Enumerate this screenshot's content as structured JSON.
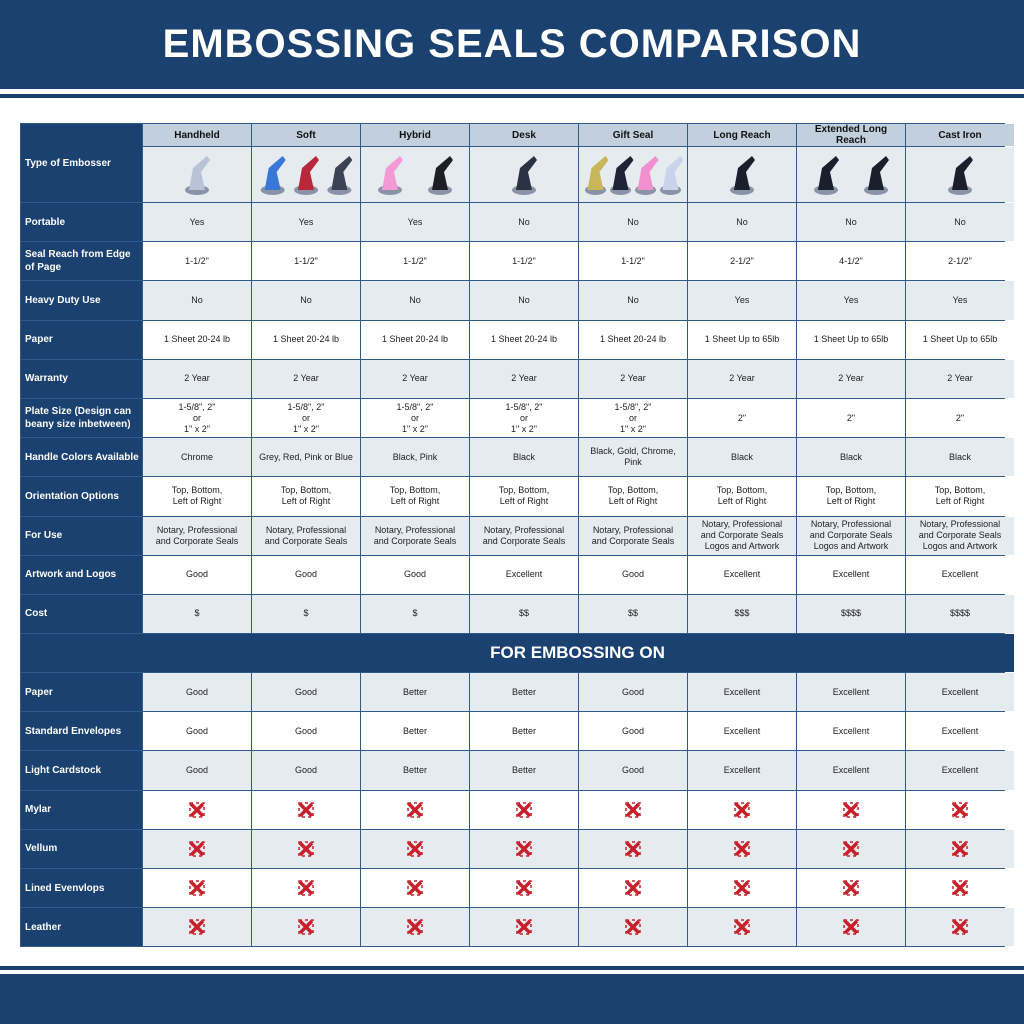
{
  "title": "EMBOSSING SEALS COMPARISON",
  "colors": {
    "brand_blue": "#1a4170",
    "header_grey": "#c2cfdc",
    "row_alt": "#e6ebf0",
    "x_mark": "#c8202a"
  },
  "type_label": "Type of Embosser",
  "columns": [
    {
      "name": "Handheld",
      "image_colors": [
        "#b9c3d8"
      ]
    },
    {
      "name": "Soft",
      "image_colors": [
        "#3a78d8",
        "#b8283a",
        "#3b4256"
      ]
    },
    {
      "name": "Hybrid",
      "image_colors": [
        "#f39ad4",
        "#1e1f26"
      ]
    },
    {
      "name": "Desk",
      "image_colors": [
        "#2b3242"
      ]
    },
    {
      "name": "Gift Seal",
      "image_colors": [
        "#c9b65a",
        "#1e2336",
        "#f28fcf",
        "#c9d4ea"
      ]
    },
    {
      "name": "Long Reach",
      "image_colors": [
        "#1b1f2c"
      ]
    },
    {
      "name": "Extended Long Reach",
      "image_colors": [
        "#1b1f2c",
        "#1b1f2c"
      ]
    },
    {
      "name": "Cast Iron",
      "image_colors": [
        "#1b1f2c"
      ]
    }
  ],
  "rows": [
    {
      "label": "Portable",
      "values": [
        "Yes",
        "Yes",
        "Yes",
        "No",
        "No",
        "No",
        "No",
        "No"
      ]
    },
    {
      "label": "Seal Reach from Edge of Page",
      "values": [
        "1-1/2\"",
        "1-1/2\"",
        "1-1/2\"",
        "1-1/2\"",
        "1-1/2\"",
        "2-1/2\"",
        "4-1/2\"",
        "2-1/2\""
      ]
    },
    {
      "label": "Heavy Duty Use",
      "values": [
        "No",
        "No",
        "No",
        "No",
        "No",
        "Yes",
        "Yes",
        "Yes"
      ]
    },
    {
      "label": "Paper",
      "values": [
        "1 Sheet 20-24 lb",
        "1 Sheet 20-24 lb",
        "1 Sheet 20-24 lb",
        "1 Sheet 20-24 lb",
        "1 Sheet 20-24 lb",
        "1 Sheet Up to 65lb",
        "1 Sheet Up to 65lb",
        "1 Sheet Up to 65lb"
      ]
    },
    {
      "label": "Warranty",
      "values": [
        "2 Year",
        "2 Year",
        "2 Year",
        "2 Year",
        "2 Year",
        "2 Year",
        "2 Year",
        "2 Year"
      ]
    },
    {
      "label": "Plate Size (Design can beany size inbetween)",
      "values": [
        "1-5/8\", 2\"\nor\n1\" x 2\"",
        "1-5/8\", 2\"\nor\n1\" x 2\"",
        "1-5/8\", 2\"\nor\n1\" x 2\"",
        "1-5/8\", 2\"\nor\n1\" x 2\"",
        "1-5/8\", 2\"\nor\n1\" x 2\"",
        "2\"",
        "2\"",
        "2\""
      ]
    },
    {
      "label": "Handle Colors Available",
      "values": [
        "Chrome",
        "Grey, Red, Pink or Blue",
        "Black, Pink",
        "Black",
        "Black, Gold, Chrome, Pink",
        "Black",
        "Black",
        "Black"
      ]
    },
    {
      "label": "Orientation Options",
      "values": [
        "Top, Bottom,\nLeft of Right",
        "Top, Bottom,\nLeft of Right",
        "Top, Bottom,\nLeft of Right",
        "Top, Bottom,\nLeft of Right",
        "Top, Bottom,\nLeft of Right",
        "Top, Bottom,\nLeft of Right",
        "Top, Bottom,\nLeft of Right",
        "Top, Bottom,\nLeft of Right"
      ]
    },
    {
      "label": "For Use",
      "values": [
        "Notary, Professional\nand Corporate Seals",
        "Notary, Professional\nand Corporate Seals",
        "Notary, Professional\nand Corporate Seals",
        "Notary, Professional\nand Corporate Seals",
        "Notary, Professional\nand Corporate Seals",
        "Notary, Professional\nand Corporate Seals\nLogos and Artwork",
        "Notary, Professional\nand Corporate Seals\nLogos and Artwork",
        "Notary, Professional\nand Corporate Seals\nLogos and Artwork"
      ]
    },
    {
      "label": "Artwork and Logos",
      "values": [
        "Good",
        "Good",
        "Good",
        "Excellent",
        "Good",
        "Excellent",
        "Excellent",
        "Excellent"
      ]
    },
    {
      "label": "Cost",
      "values": [
        "$",
        "$",
        "$",
        "$$",
        "$$",
        "$$$",
        "$$$$",
        "$$$$"
      ]
    }
  ],
  "section_title": "FOR EMBOSSING ON",
  "embossing_rows": [
    {
      "label": "Paper",
      "values": [
        "Good",
        "Good",
        "Better",
        "Better",
        "Good",
        "Excellent",
        "Excellent",
        "Excellent"
      ]
    },
    {
      "label": "Standard Envelopes",
      "values": [
        "Good",
        "Good",
        "Better",
        "Better",
        "Good",
        "Excellent",
        "Excellent",
        "Excellent"
      ]
    },
    {
      "label": "Light Cardstock",
      "values": [
        "Good",
        "Good",
        "Better",
        "Better",
        "Good",
        "Excellent",
        "Excellent",
        "Excellent"
      ]
    },
    {
      "label": "Mylar",
      "values": [
        "x",
        "x",
        "x",
        "x",
        "x",
        "x",
        "x",
        "x"
      ]
    },
    {
      "label": "Vellum",
      "values": [
        "x",
        "x",
        "x",
        "x",
        "x",
        "x",
        "x",
        "x"
      ]
    },
    {
      "label": "Lined Evenvlops",
      "values": [
        "x",
        "x",
        "x",
        "x",
        "x",
        "x",
        "x",
        "x"
      ]
    },
    {
      "label": "Leather",
      "values": [
        "x",
        "x",
        "x",
        "x",
        "x",
        "x",
        "x",
        "x"
      ]
    }
  ]
}
